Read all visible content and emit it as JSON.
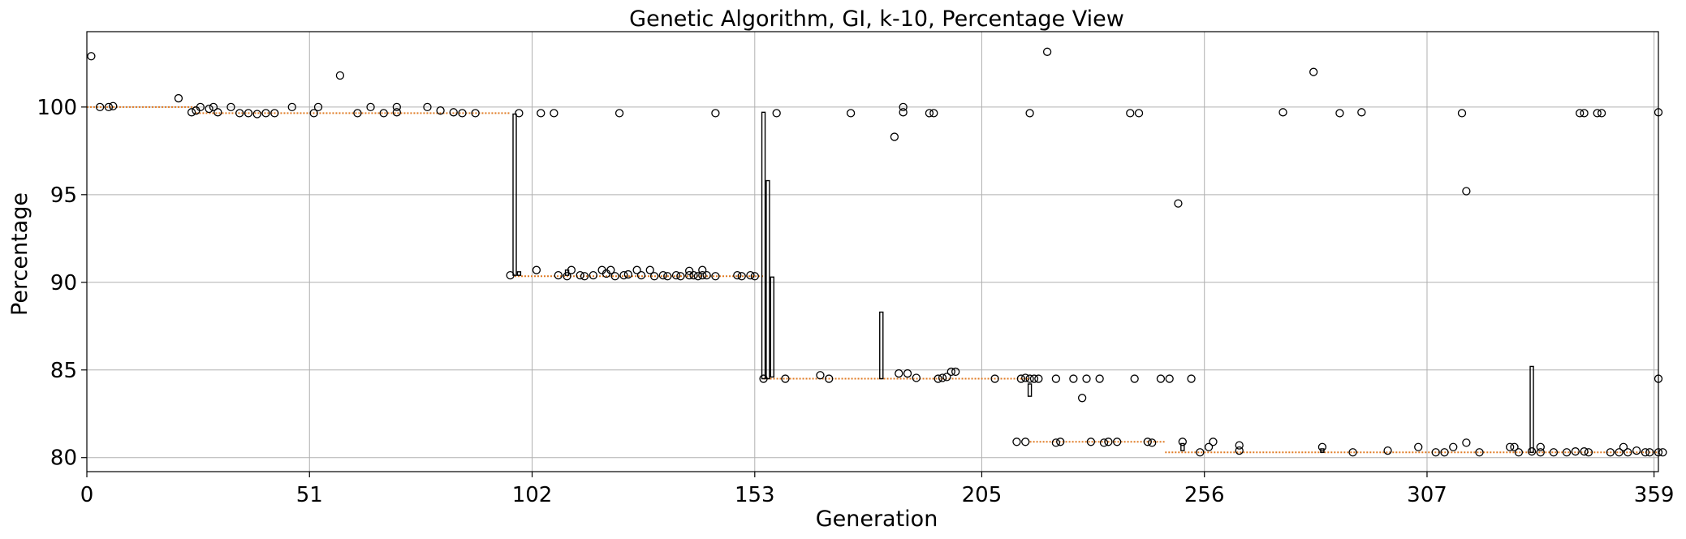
{
  "chart_data": {
    "type": "box",
    "title": "Genetic Algorithm, GI, k-10, Percentage View",
    "xlabel": "Generation",
    "ylabel": "Percentage",
    "xlim": [
      0,
      360
    ],
    "ylim": [
      79.2,
      104.3
    ],
    "x_ticks": [
      0,
      51,
      102,
      153,
      205,
      256,
      307,
      359
    ],
    "y_ticks": [
      80,
      85,
      90,
      95,
      100
    ],
    "grid": true,
    "colors": {
      "median": "#e07b24",
      "box": "#000000",
      "outlier": "#000000",
      "grid": "#b0b0b0"
    },
    "median_segments": [
      {
        "x_start": 0,
        "x_end": 25,
        "median": 100.0
      },
      {
        "x_start": 25,
        "x_end": 97,
        "median": 99.65
      },
      {
        "x_start": 98,
        "x_end": 155,
        "median": 90.35
      },
      {
        "x_start": 155,
        "x_end": 216,
        "median": 84.5
      },
      {
        "x_start": 216,
        "x_end": 247,
        "median": 80.9
      },
      {
        "x_start": 247,
        "x_end": 360,
        "median": 80.3
      }
    ],
    "boxes": [
      {
        "x": 98,
        "q1": 90.4,
        "q3": 99.6
      },
      {
        "x": 99,
        "q1": 90.4,
        "q3": 90.6
      },
      {
        "x": 110,
        "q1": 90.4,
        "q3": 90.7
      },
      {
        "x": 155,
        "q1": 84.5,
        "q3": 99.7
      },
      {
        "x": 156,
        "q1": 84.5,
        "q3": 95.8
      },
      {
        "x": 157,
        "q1": 84.6,
        "q3": 90.3
      },
      {
        "x": 182,
        "q1": 84.5,
        "q3": 88.3
      },
      {
        "x": 216,
        "q1": 83.5,
        "q3": 84.2
      },
      {
        "x": 251,
        "q1": 80.4,
        "q3": 80.8
      },
      {
        "x": 283,
        "q1": 80.3,
        "q3": 80.5
      },
      {
        "x": 331,
        "q1": 80.3,
        "q3": 85.2
      }
    ],
    "outliers": [
      [
        1,
        102.9
      ],
      [
        3,
        100.0
      ],
      [
        5,
        100.0
      ],
      [
        6,
        100.05
      ],
      [
        21,
        100.5
      ],
      [
        24,
        99.7
      ],
      [
        25,
        99.8
      ],
      [
        26,
        100.0
      ],
      [
        28,
        99.9
      ],
      [
        29,
        100.0
      ],
      [
        30,
        99.7
      ],
      [
        33,
        100.0
      ],
      [
        35,
        99.65
      ],
      [
        37,
        99.65
      ],
      [
        39,
        99.6
      ],
      [
        41,
        99.65
      ],
      [
        43,
        99.65
      ],
      [
        47,
        100.0
      ],
      [
        52,
        99.65
      ],
      [
        53,
        100.0
      ],
      [
        58,
        101.8
      ],
      [
        62,
        99.65
      ],
      [
        65,
        100.0
      ],
      [
        68,
        99.65
      ],
      [
        71,
        100.0
      ],
      [
        71,
        99.7
      ],
      [
        78,
        100.0
      ],
      [
        81,
        99.8
      ],
      [
        84,
        99.7
      ],
      [
        86,
        99.65
      ],
      [
        89,
        99.65
      ],
      [
        97,
        90.4
      ],
      [
        99,
        99.65
      ],
      [
        103,
        90.7
      ],
      [
        104,
        99.65
      ],
      [
        107,
        99.65
      ],
      [
        108,
        90.4
      ],
      [
        110,
        90.35
      ],
      [
        111,
        90.7
      ],
      [
        113,
        90.4
      ],
      [
        114,
        90.35
      ],
      [
        116,
        90.4
      ],
      [
        118,
        90.7
      ],
      [
        119,
        90.5
      ],
      [
        120,
        90.7
      ],
      [
        121,
        90.35
      ],
      [
        122,
        99.65
      ],
      [
        123,
        90.4
      ],
      [
        124,
        90.45
      ],
      [
        126,
        90.7
      ],
      [
        127,
        90.4
      ],
      [
        129,
        90.7
      ],
      [
        130,
        90.35
      ],
      [
        132,
        90.4
      ],
      [
        133,
        90.35
      ],
      [
        135,
        90.4
      ],
      [
        136,
        90.35
      ],
      [
        138,
        90.4
      ],
      [
        138,
        90.65
      ],
      [
        139,
        90.4
      ],
      [
        140,
        90.35
      ],
      [
        141,
        90.4
      ],
      [
        141,
        90.7
      ],
      [
        142,
        90.4
      ],
      [
        144,
        99.65
      ],
      [
        144,
        90.35
      ],
      [
        149,
        90.4
      ],
      [
        150,
        90.35
      ],
      [
        152,
        90.4
      ],
      [
        153,
        90.35
      ],
      [
        155,
        84.5
      ],
      [
        158,
        99.65
      ],
      [
        160,
        84.5
      ],
      [
        168,
        84.7
      ],
      [
        170,
        84.5
      ],
      [
        175,
        99.65
      ],
      [
        185,
        98.3
      ],
      [
        186,
        84.8
      ],
      [
        187,
        99.7
      ],
      [
        187,
        100.0
      ],
      [
        188,
        84.8
      ],
      [
        190,
        84.55
      ],
      [
        193,
        99.65
      ],
      [
        194,
        99.65
      ],
      [
        195,
        84.5
      ],
      [
        196,
        84.55
      ],
      [
        197,
        84.6
      ],
      [
        198,
        84.9
      ],
      [
        199,
        84.9
      ],
      [
        208,
        84.5
      ],
      [
        214,
        84.5
      ],
      [
        215,
        84.55
      ],
      [
        216,
        84.5
      ],
      [
        222,
        84.5
      ],
      [
        232,
        84.5
      ],
      [
        213,
        80.9
      ],
      [
        215,
        80.9
      ],
      [
        216,
        99.65
      ],
      [
        217,
        84.5
      ],
      [
        218,
        84.5
      ],
      [
        220,
        103.15
      ],
      [
        222,
        80.85
      ],
      [
        223,
        80.9
      ],
      [
        226,
        84.5
      ],
      [
        228,
        83.4
      ],
      [
        229,
        84.5
      ],
      [
        230,
        80.9
      ],
      [
        233,
        80.85
      ],
      [
        234,
        80.9
      ],
      [
        236,
        80.9
      ],
      [
        239,
        99.65
      ],
      [
        240,
        84.5
      ],
      [
        241,
        99.65
      ],
      [
        243,
        80.9
      ],
      [
        244,
        80.85
      ],
      [
        246,
        84.5
      ],
      [
        248,
        84.5
      ],
      [
        250,
        94.5
      ],
      [
        251,
        80.9
      ],
      [
        253,
        84.5
      ],
      [
        255,
        80.3
      ],
      [
        257,
        80.6
      ],
      [
        258,
        80.9
      ],
      [
        264,
        80.4
      ],
      [
        264,
        80.7
      ],
      [
        274,
        99.7
      ],
      [
        281,
        102.0
      ],
      [
        283,
        80.6
      ],
      [
        287,
        99.65
      ],
      [
        290,
        80.3
      ],
      [
        292,
        99.7
      ],
      [
        298,
        80.4
      ],
      [
        305,
        80.6
      ],
      [
        309,
        80.3
      ],
      [
        311,
        80.3
      ],
      [
        313,
        80.6
      ],
      [
        315,
        99.65
      ],
      [
        316,
        80.85
      ],
      [
        316,
        95.2
      ],
      [
        319,
        80.3
      ],
      [
        326,
        80.6
      ],
      [
        327,
        80.6
      ],
      [
        328,
        80.3
      ],
      [
        331,
        80.35
      ],
      [
        333,
        80.6
      ],
      [
        333,
        80.3
      ],
      [
        336,
        80.3
      ],
      [
        339,
        80.3
      ],
      [
        341,
        80.35
      ],
      [
        342,
        99.65
      ],
      [
        343,
        99.65
      ],
      [
        343,
        80.35
      ],
      [
        344,
        80.3
      ],
      [
        346,
        99.65
      ],
      [
        347,
        99.65
      ],
      [
        349,
        80.3
      ],
      [
        351,
        80.3
      ],
      [
        352,
        80.6
      ],
      [
        353,
        80.3
      ],
      [
        355,
        80.4
      ],
      [
        357,
        80.3
      ],
      [
        358,
        80.3
      ],
      [
        360,
        99.7
      ],
      [
        360,
        80.3
      ],
      [
        361,
        80.3
      ],
      [
        360,
        84.5
      ]
    ]
  }
}
